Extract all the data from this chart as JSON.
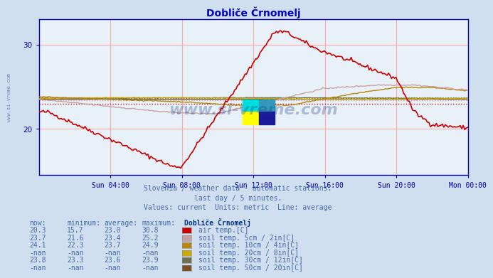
{
  "title": "Dobliče Črnomelj",
  "bg_color": "#d0dff0",
  "plot_bg_color": "#e8f0f8",
  "title_color": "#0000cc",
  "axis_color": "#0000aa",
  "grid_color": "#ffaaaa",
  "xlabel_color": "#4466aa",
  "text_color": "#4466aa",
  "header_color": "#003388",
  "xtick_labels": [
    "Sun 04:00",
    "Sun 08:00",
    "Sun 12:00",
    "Sun 16:00",
    "Sun 20:00",
    "Mon 00:00"
  ],
  "yticks": [
    20,
    30
  ],
  "ylim": [
    14.5,
    33.0
  ],
  "xlim": [
    0,
    24
  ],
  "series_colors": {
    "air_temp": "#cc0000",
    "soil_5cm": "#c8a0a0",
    "soil_10cm": "#b8860b",
    "soil_20cm": "#ccaa00",
    "soil_30cm": "#707050",
    "soil_50cm": "#7a5020"
  },
  "avg_values": {
    "air_temp": 23.0,
    "soil_5cm": 23.4,
    "soil_10cm": 23.7,
    "soil_30cm": 23.6
  },
  "legend_items": [
    {
      "label": "air temp.[C]",
      "color": "#cc0000",
      "now": "20.3",
      "min": "15.7",
      "avg": "23.0",
      "max": "30.8"
    },
    {
      "label": "soil temp. 5cm / 2in[C]",
      "color": "#c8a0a0",
      "now": "23.7",
      "min": "21.6",
      "avg": "23.4",
      "max": "25.2"
    },
    {
      "label": "soil temp. 10cm / 4in[C]",
      "color": "#b8860b",
      "now": "24.1",
      "min": "22.3",
      "avg": "23.7",
      "max": "24.9"
    },
    {
      "label": "soil temp. 20cm / 8in[C]",
      "color": "#ccaa00",
      "now": "-nan",
      "min": "-nan",
      "avg": "-nan",
      "max": "-nan"
    },
    {
      "label": "soil temp. 30cm / 12in[C]",
      "color": "#707050",
      "now": "23.8",
      "min": "23.3",
      "avg": "23.6",
      "max": "23.9"
    },
    {
      "label": "soil temp. 50cm / 20in[C]",
      "color": "#7a5020",
      "now": "-nan",
      "min": "-nan",
      "avg": "-nan",
      "max": "-nan"
    }
  ],
  "subtitle1": "Slovenia / weather data - automatic stations.",
  "subtitle2": "last day / 5 minutes.",
  "subtitle3": "Values: current  Units: metric  Line: average",
  "watermark": "www.si-vreme.com",
  "n_points": 288,
  "logo_colors": [
    "#00cccc",
    "#ffff00",
    "#3399cc",
    "#1a1acc"
  ]
}
